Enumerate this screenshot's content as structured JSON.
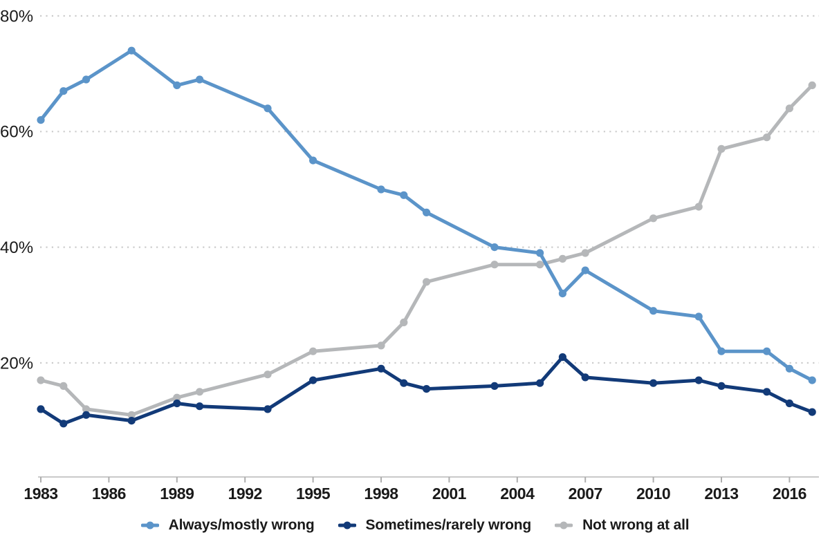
{
  "chart_data": {
    "type": "line",
    "title": "",
    "x": [
      1983,
      1984,
      1985,
      1987,
      1989,
      1990,
      1993,
      1995,
      1998,
      1999,
      2000,
      2003,
      2005,
      2006,
      2007,
      2010,
      2012,
      2013,
      2015,
      2016,
      2017
    ],
    "series": [
      {
        "name": "Always/mostly wrong",
        "color": "#5b94c9",
        "values": [
          62,
          67,
          69,
          74,
          68,
          69,
          64,
          55,
          50,
          49,
          46,
          40,
          39,
          32,
          36,
          29,
          28,
          22,
          22,
          19,
          17
        ]
      },
      {
        "name": "Sometimes/rarely wrong",
        "color": "#123a78",
        "values": [
          12,
          9.5,
          11,
          10,
          13,
          12.5,
          12,
          17,
          19,
          16.5,
          15.5,
          16,
          16.5,
          21,
          17.5,
          16.5,
          17,
          16,
          15,
          13,
          11.5
        ]
      },
      {
        "name": "Not wrong at all",
        "color": "#b5b7b9",
        "values": [
          17,
          16,
          12,
          11,
          14,
          15,
          18,
          22,
          23,
          27,
          34,
          37,
          37,
          38,
          39,
          45,
          47,
          57,
          59,
          64,
          68
        ]
      }
    ],
    "y_axis": {
      "ticks": [
        20,
        40,
        60,
        80
      ],
      "tick_suffix": "%",
      "tick_labels": [
        "20%",
        "40%",
        "60%",
        "80%"
      ],
      "range": [
        0,
        83
      ]
    },
    "x_axis": {
      "ticks": [
        1983,
        1986,
        1989,
        1992,
        1995,
        1998,
        2001,
        2004,
        2007,
        2010,
        2013,
        2016
      ],
      "range": [
        1983,
        2017.3
      ]
    },
    "grid": "dotted horizontal gridlines",
    "legend_position": "bottom-center"
  },
  "colors": {
    "text": "#1a1a1a",
    "gridline": "#cccccc",
    "axis_line": "#c9c9c9",
    "tick": "#adadad",
    "background": "#ffffff"
  }
}
